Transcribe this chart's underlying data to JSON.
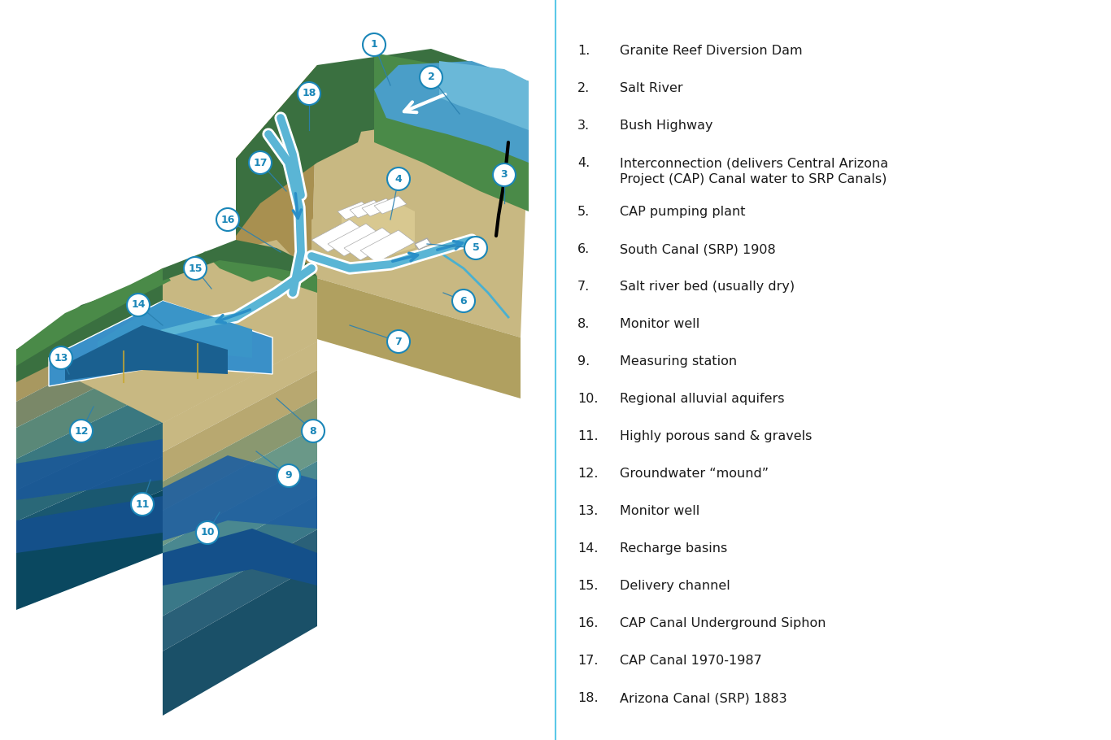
{
  "legend_items": [
    {
      "num": 1,
      "text": "Granite Reef Diversion Dam"
    },
    {
      "num": 2,
      "text": "Salt River"
    },
    {
      "num": 3,
      "text": "Bush Highway"
    },
    {
      "num": 4,
      "text": "Interconnection (delivers Central Arizona\nProject (CAP) Canal water to SRP Canals)"
    },
    {
      "num": 5,
      "text": "CAP pumping plant"
    },
    {
      "num": 6,
      "text": "South Canal (SRP) 1908"
    },
    {
      "num": 7,
      "text": "Salt river bed (usually dry)"
    },
    {
      "num": 8,
      "text": "Monitor well"
    },
    {
      "num": 9,
      "text": "Measuring station"
    },
    {
      "num": 10,
      "text": "Regional alluvial aquifers"
    },
    {
      "num": 11,
      "text": "Highly porous sand & gravels"
    },
    {
      "num": 12,
      "text": "Groundwater “mound”"
    },
    {
      "num": 13,
      "text": "Monitor well"
    },
    {
      "num": 14,
      "text": "Recharge basins"
    },
    {
      "num": 15,
      "text": "Delivery channel"
    },
    {
      "num": 16,
      "text": "CAP Canal Underground Siphon"
    },
    {
      "num": 17,
      "text": "CAP Canal 1970-1987"
    },
    {
      "num": 18,
      "text": "Arizona Canal (SRP) 1883"
    }
  ],
  "num_color": "#1a86b8",
  "text_color": "#1a1a1a",
  "bg_color": "#ffffff",
  "divider_color": "#5bc8e8",
  "font_size_legend": 11.5,
  "colors": {
    "green_dark": "#3a7040",
    "green_mid": "#4a8a48",
    "green_light": "#5a9a58",
    "sand": "#c8b882",
    "sand_dark": "#b0a060",
    "sand_side": "#a89050",
    "river_blue": "#4a9ec8",
    "river_light": "#6ab8d8",
    "water_blue": "#2a80c0",
    "water_mid": "#3a90c8",
    "canal_white": "#ffffff",
    "layer1": "#c8b882",
    "layer2": "#b8a870",
    "layer3": "#8a9870",
    "layer4": "#6a9888",
    "layer5": "#4a8890",
    "layer6": "#3a7888",
    "layer7": "#2a6078",
    "layer8": "#1a5068",
    "layer1s": "#c0b078",
    "layer2s": "#a89860",
    "layer3s": "#7a8868",
    "layer4s": "#5a8878",
    "layer5s": "#3a7880",
    "layer6s": "#2a6878",
    "layer7s": "#1a5870",
    "layer8s": "#0a4860",
    "gw_blue1": "#2060a0",
    "gw_blue2": "#1a5090",
    "gw_blue3": "#1848808"
  }
}
